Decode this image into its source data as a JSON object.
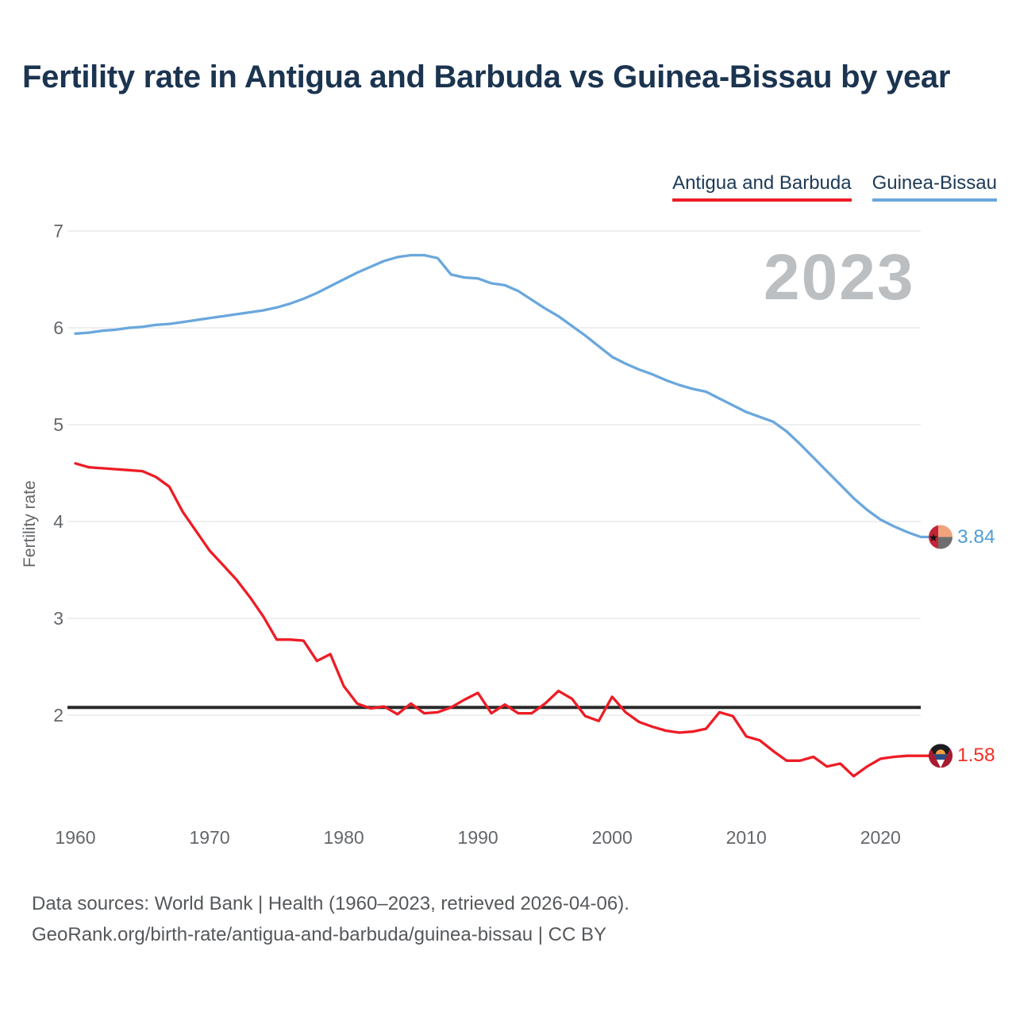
{
  "title": "Fertility rate in Antigua and Barbuda vs Guinea-Bissau by year",
  "watermark_year": "2023",
  "footer": {
    "source_line": "Data sources: World Bank | Health (1960–2023, retrieved 2026-04-06).",
    "attribution_line": "GeoRank.org/birth-rate/antigua-and-barbuda/guinea-bissau | CC BY"
  },
  "chart_data": {
    "type": "line",
    "title": "Fertility rate in Antigua and Barbuda vs Guinea-Bissau by year",
    "xlabel": "",
    "ylabel": "Fertility rate",
    "grid": true,
    "legend_position": "top-right",
    "xticks": [
      1960,
      1970,
      1980,
      1990,
      2000,
      2010,
      2020
    ],
    "yticks": [
      2,
      3,
      4,
      5,
      6,
      7
    ],
    "ylim": [
      1.3,
      7.15
    ],
    "xlim": [
      1960,
      2023
    ],
    "reference_line": {
      "value": 2.08,
      "color": "#2a2a2a"
    },
    "x": [
      1960,
      1961,
      1962,
      1963,
      1964,
      1965,
      1966,
      1967,
      1968,
      1969,
      1970,
      1971,
      1972,
      1973,
      1974,
      1975,
      1976,
      1977,
      1978,
      1979,
      1980,
      1981,
      1982,
      1983,
      1984,
      1985,
      1986,
      1987,
      1988,
      1989,
      1990,
      1991,
      1992,
      1993,
      1994,
      1995,
      1996,
      1997,
      1998,
      1999,
      2000,
      2001,
      2002,
      2003,
      2004,
      2005,
      2006,
      2007,
      2008,
      2009,
      2010,
      2011,
      2012,
      2013,
      2014,
      2015,
      2016,
      2017,
      2018,
      2019,
      2020,
      2021,
      2022,
      2023
    ],
    "series": [
      {
        "name": "Antigua and Barbuda",
        "flag": "antigua-and-barbuda",
        "color": "#ee1c25",
        "label_color": "#ee3126",
        "end_label": "1.58",
        "end_value": 1.58,
        "values": [
          4.6,
          4.56,
          4.55,
          4.54,
          4.53,
          4.52,
          4.46,
          4.36,
          4.1,
          3.9,
          3.7,
          3.55,
          3.4,
          3.22,
          3.02,
          2.78,
          2.78,
          2.77,
          2.56,
          2.63,
          2.3,
          2.12,
          2.07,
          2.09,
          2.01,
          2.12,
          2.02,
          2.03,
          2.08,
          2.16,
          2.23,
          2.02,
          2.11,
          2.02,
          2.02,
          2.12,
          2.25,
          2.17,
          1.99,
          1.94,
          2.19,
          2.03,
          1.93,
          1.88,
          1.84,
          1.82,
          1.83,
          1.86,
          2.03,
          1.99,
          1.78,
          1.74,
          1.63,
          1.53,
          1.53,
          1.57,
          1.47,
          1.5,
          1.37,
          1.47,
          1.55,
          1.57,
          1.58,
          1.58
        ]
      },
      {
        "name": "Guinea-Bissau",
        "flag": "guinea-bissau",
        "color": "#6aa7dd",
        "label_color": "#4f9cd6",
        "end_label": "3.84",
        "end_value": 3.84,
        "values": [
          5.94,
          5.95,
          5.97,
          5.98,
          6.0,
          6.01,
          6.03,
          6.04,
          6.06,
          6.08,
          6.1,
          6.12,
          6.14,
          6.16,
          6.18,
          6.21,
          6.25,
          6.3,
          6.36,
          6.43,
          6.5,
          6.57,
          6.63,
          6.69,
          6.73,
          6.75,
          6.75,
          6.72,
          6.55,
          6.52,
          6.51,
          6.46,
          6.44,
          6.38,
          6.29,
          6.2,
          6.12,
          6.02,
          5.92,
          5.81,
          5.7,
          5.63,
          5.57,
          5.52,
          5.46,
          5.41,
          5.37,
          5.34,
          5.27,
          5.2,
          5.13,
          5.08,
          5.03,
          4.93,
          4.8,
          4.66,
          4.52,
          4.38,
          4.24,
          4.12,
          4.02,
          3.95,
          3.89,
          3.84
        ]
      }
    ]
  }
}
